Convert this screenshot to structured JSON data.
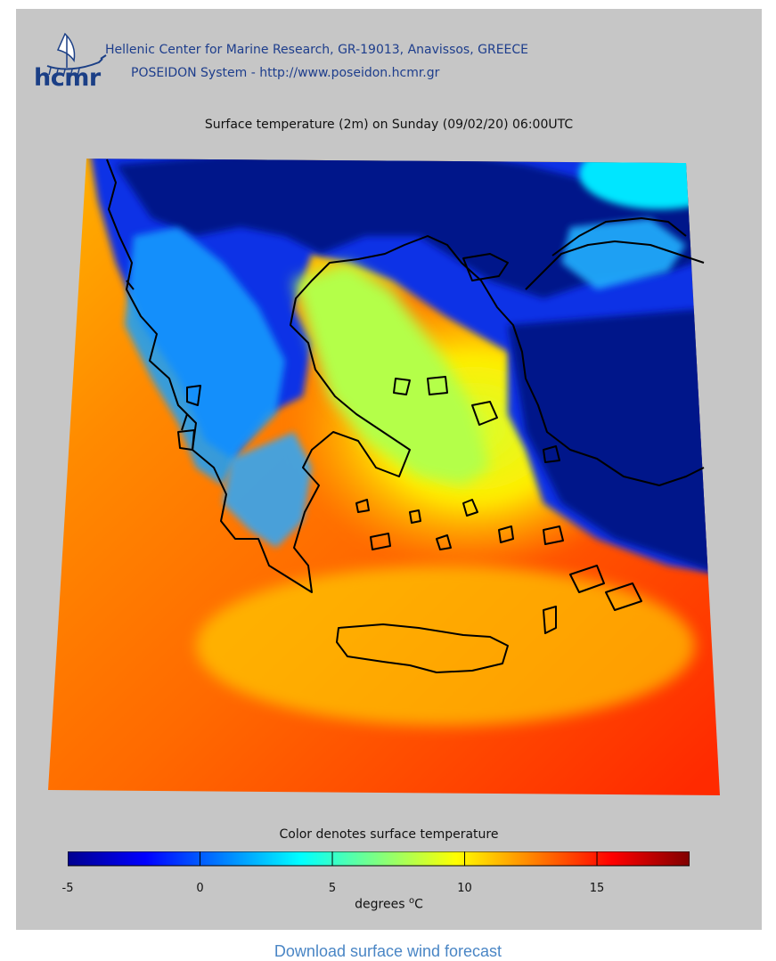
{
  "header": {
    "logo_text": "hcmr",
    "line1": "Hellenic Center for Marine Research, GR-19013, Anavissos, GREECE",
    "line2": "POSEIDON System - http://www.poseidon.hcmr.gr"
  },
  "map": {
    "title": "Surface temperature (2m) on Sunday (09/02/20) 06:00UTC",
    "variable": "Surface temperature (2m)",
    "units": "°C"
  },
  "colorbar": {
    "title": "Color denotes surface temperature",
    "min": -5,
    "max": 18.5,
    "ticks": [
      "-5",
      "0",
      "5",
      "10",
      "15"
    ],
    "tick_values": [
      -5,
      0,
      5,
      10,
      15
    ],
    "unit_label": "degrees",
    "unit_symbol": "o",
    "unit_letter": "C",
    "colors": [
      "#00008f",
      "#0000ff",
      "#0080ff",
      "#00ffff",
      "#80ff80",
      "#ffff00",
      "#ff8000",
      "#ff0000",
      "#800000"
    ]
  },
  "footer": {
    "link_text": "Download surface wind forecast"
  }
}
